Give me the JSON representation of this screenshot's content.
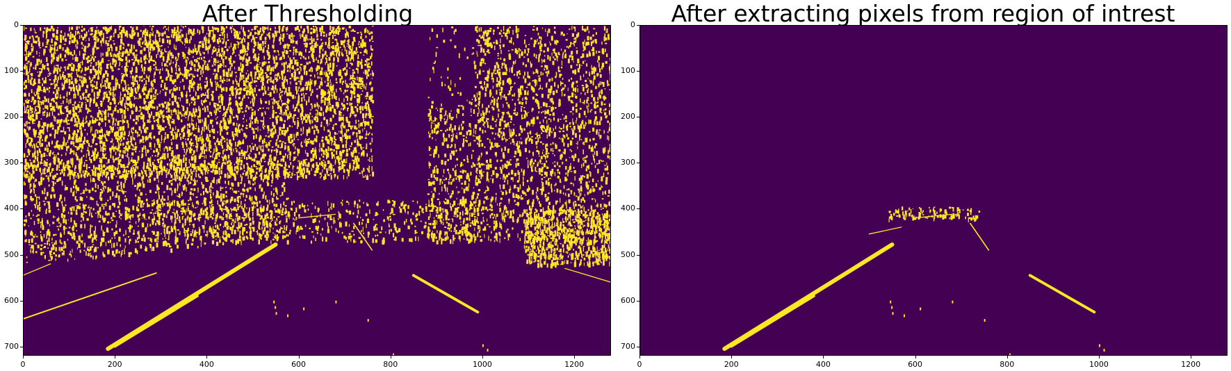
{
  "panels": [
    {
      "title": "After Thresholding",
      "image_width": 1280,
      "image_height": 720,
      "x_ticks": [
        "0",
        "200",
        "400",
        "600",
        "800",
        "1000",
        "1200"
      ],
      "y_ticks": [
        "0",
        "100",
        "200",
        "300",
        "400",
        "500",
        "600",
        "700"
      ],
      "x_tick_values": [
        0,
        200,
        400,
        600,
        800,
        1000,
        1200
      ],
      "y_tick_values": [
        0,
        100,
        200,
        300,
        400,
        500,
        600,
        700
      ],
      "mode": "full"
    },
    {
      "title": "After extracting pixels from region of intrest",
      "image_width": 1280,
      "image_height": 720,
      "x_ticks": [
        "0",
        "200",
        "400",
        "600",
        "800",
        "1000",
        "1200"
      ],
      "y_ticks": [
        "0",
        "100",
        "200",
        "300",
        "400",
        "500",
        "600",
        "700"
      ],
      "x_tick_values": [
        0,
        200,
        400,
        600,
        800,
        1000,
        1200
      ],
      "y_tick_values": [
        0,
        100,
        200,
        300,
        400,
        500,
        600,
        700
      ],
      "mode": "roi"
    }
  ],
  "colors": {
    "background": "#440154",
    "foreground": "#fde725"
  }
}
